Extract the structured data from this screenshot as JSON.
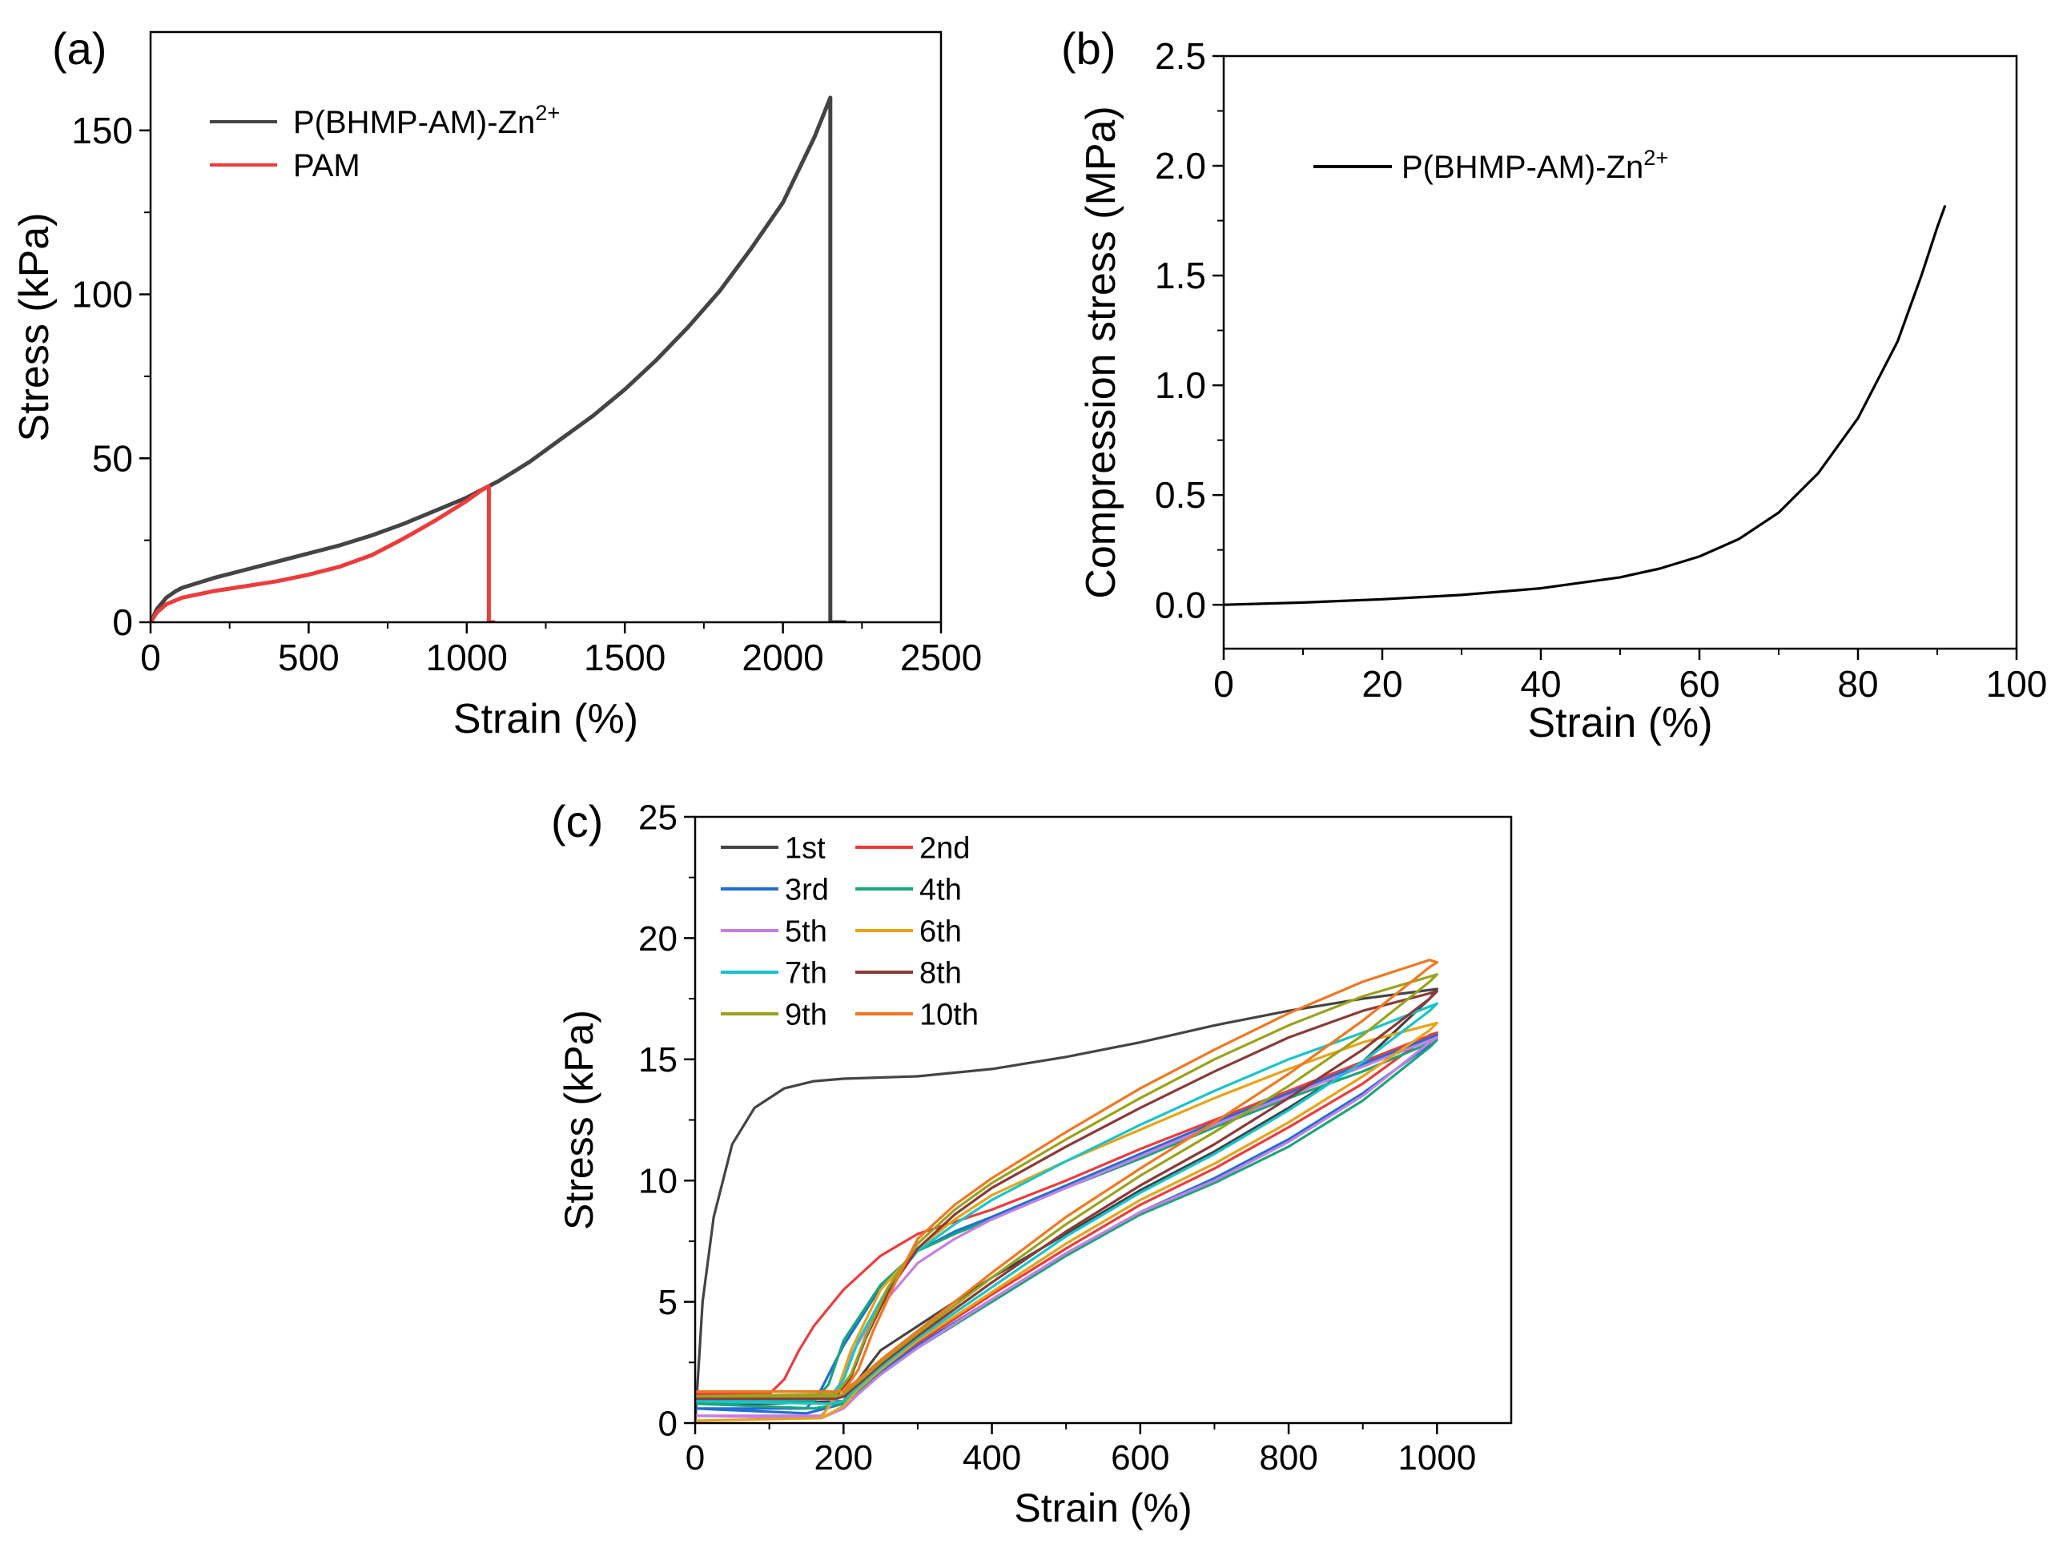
{
  "chart_data": [
    {
      "panel_label": "(a)",
      "type": "line",
      "xlabel": "Strain (%)",
      "ylabel": "Stress (kPa)",
      "xlim": [
        0,
        2500
      ],
      "ylim": [
        0,
        180
      ],
      "xticks": [
        0,
        500,
        1000,
        1500,
        2000,
        2500
      ],
      "yticks": [
        0,
        50,
        100,
        150
      ],
      "legend": "top-left",
      "series": [
        {
          "name": "P(BHMP-AM)-Zn2+",
          "name_base": "P(BHMP-AM)-Zn",
          "name_sup": "2+",
          "color": "#444444",
          "x": [
            0,
            20,
            50,
            80,
            100,
            200,
            300,
            400,
            500,
            600,
            700,
            800,
            900,
            1000,
            1100,
            1200,
            1300,
            1400,
            1500,
            1600,
            1700,
            1800,
            1900,
            2000,
            2100,
            2150,
            2150,
            2200
          ],
          "y": [
            0,
            4,
            7.5,
            9.5,
            10.5,
            13.5,
            16,
            18.5,
            21,
            23.5,
            26.5,
            30,
            34,
            38,
            43,
            49,
            56,
            63,
            71,
            80,
            90,
            101,
            114,
            128,
            148,
            160,
            0,
            0
          ]
        },
        {
          "name": "PAM",
          "color": "#ee3b3b",
          "x": [
            0,
            20,
            50,
            100,
            200,
            300,
            400,
            500,
            600,
            700,
            800,
            900,
            1000,
            1050,
            1070,
            1070,
            1090
          ],
          "y": [
            0,
            3,
            5.5,
            7.5,
            9.5,
            11,
            12.5,
            14.5,
            17,
            20.5,
            25.5,
            31,
            37,
            40.5,
            41.5,
            0,
            0
          ]
        }
      ]
    },
    {
      "panel_label": "(b)",
      "type": "line",
      "xlabel": "Strain (%)",
      "ylabel": "Compression stress (MPa)",
      "xlim": [
        0,
        100
      ],
      "ylim": [
        -0.2,
        2.5
      ],
      "xticks": [
        0,
        20,
        40,
        60,
        80,
        100
      ],
      "yticks": [
        0.0,
        0.5,
        1.0,
        1.5,
        2.0,
        2.5
      ],
      "ytick_labels": [
        "0.0",
        "0.5",
        "1.0",
        "1.5",
        "2.0",
        "2.5"
      ],
      "legend": "top-left",
      "series": [
        {
          "name": "P(BHMP-AM)-Zn2+",
          "name_base": "P(BHMP-AM)-Zn",
          "name_sup": "2+",
          "color": "#000000",
          "x": [
            0,
            10,
            20,
            30,
            40,
            50,
            55,
            60,
            65,
            70,
            75,
            80,
            85,
            88,
            90,
            91
          ],
          "y": [
            0,
            0.01,
            0.025,
            0.045,
            0.075,
            0.125,
            0.165,
            0.22,
            0.3,
            0.42,
            0.6,
            0.85,
            1.2,
            1.5,
            1.72,
            1.82
          ]
        }
      ]
    },
    {
      "panel_label": "(c)",
      "type": "line",
      "xlabel": "Strain (%)",
      "ylabel": "Stress (kPa)",
      "xlim": [
        0,
        1100
      ],
      "ylim": [
        0,
        25
      ],
      "xticks": [
        0,
        200,
        400,
        600,
        800,
        1000
      ],
      "yticks": [
        0,
        5,
        10,
        15,
        20,
        25
      ],
      "legend": "top-left",
      "series": [
        {
          "name": "1st",
          "color": "#444444",
          "x": [
            0,
            10,
            25,
            50,
            80,
            120,
            160,
            200,
            300,
            400,
            500,
            600,
            700,
            800,
            900,
            1000,
            990,
            900,
            800,
            700,
            600,
            500,
            400,
            300,
            250,
            220,
            200,
            100,
            0
          ],
          "y": [
            0,
            5,
            8.5,
            11.5,
            13,
            13.8,
            14.1,
            14.2,
            14.3,
            14.6,
            15.1,
            15.7,
            16.4,
            17,
            17.5,
            17.9,
            17.5,
            14.9,
            13,
            11.2,
            9.6,
            7.8,
            6,
            4,
            3,
            1.8,
            0.9,
            0.8,
            0.8
          ]
        },
        {
          "name": "2nd",
          "color": "#ee3b3b",
          "x": [
            0,
            100,
            120,
            140,
            160,
            200,
            250,
            300,
            350,
            400,
            500,
            600,
            700,
            800,
            900,
            1000,
            990,
            900,
            800,
            700,
            600,
            500,
            400,
            300,
            250,
            220,
            200,
            100,
            0
          ],
          "y": [
            1.2,
            1.2,
            1.8,
            3,
            4,
            5.5,
            6.9,
            7.8,
            8.3,
            8.8,
            10,
            11.3,
            12.5,
            13.7,
            14.9,
            16.1,
            16,
            14,
            12.2,
            10.5,
            9,
            7.2,
            5.3,
            3.3,
            2.2,
            1.6,
            1.1,
            1.1,
            1.2
          ]
        },
        {
          "name": "3rd",
          "color": "#1f6fd6",
          "x": [
            0,
            150,
            170,
            200,
            250,
            300,
            350,
            400,
            500,
            600,
            700,
            800,
            900,
            1000,
            990,
            900,
            800,
            700,
            600,
            500,
            400,
            300,
            250,
            220,
            200,
            150,
            0
          ],
          "y": [
            0.6,
            0.6,
            1.4,
            3.2,
            5.6,
            7.1,
            7.9,
            8.5,
            9.8,
            11.1,
            12.4,
            13.6,
            14.8,
            16,
            15.6,
            13.6,
            11.7,
            10.1,
            8.7,
            7,
            5.1,
            3.2,
            2.1,
            1.4,
            0.8,
            0.4,
            0.6
          ]
        },
        {
          "name": "4th",
          "color": "#1aa57a",
          "x": [
            0,
            160,
            180,
            200,
            250,
            300,
            350,
            400,
            500,
            600,
            700,
            800,
            900,
            1000,
            990,
            900,
            800,
            700,
            600,
            500,
            400,
            300,
            250,
            220,
            200,
            160,
            0
          ],
          "y": [
            0.8,
            0.9,
            1.6,
            3.4,
            5.7,
            7.1,
            7.8,
            8.4,
            9.7,
            10.9,
            12.2,
            13.4,
            14.5,
            15.8,
            15.5,
            13.3,
            11.4,
            9.9,
            8.6,
            6.9,
            5,
            3.1,
            2,
            1.3,
            0.8,
            0.6,
            0.8
          ]
        },
        {
          "name": "5th",
          "color": "#c77fe0",
          "x": [
            0,
            170,
            190,
            210,
            250,
            300,
            350,
            400,
            500,
            600,
            700,
            800,
            900,
            1000,
            990,
            900,
            800,
            700,
            600,
            500,
            400,
            300,
            250,
            220,
            200,
            170,
            0
          ],
          "y": [
            0.3,
            0.3,
            1,
            2.8,
            4.8,
            6.6,
            7.6,
            8.4,
            9.7,
            11,
            12.3,
            13.5,
            14.7,
            15.9,
            15.7,
            13.5,
            11.6,
            10,
            8.7,
            7,
            5.1,
            3.1,
            2,
            1.2,
            0.6,
            0.2,
            0.3
          ]
        },
        {
          "name": "6th",
          "color": "#e8a317",
          "x": [
            0,
            170,
            190,
            210,
            250,
            300,
            350,
            400,
            500,
            600,
            700,
            800,
            900,
            1000,
            990,
            900,
            800,
            700,
            600,
            500,
            400,
            300,
            250,
            220,
            200,
            170,
            0
          ],
          "y": [
            0.1,
            0.2,
            1.2,
            3,
            5.5,
            7.2,
            8.4,
            9.4,
            10.8,
            12.1,
            13.4,
            14.6,
            15.7,
            16.5,
            16.2,
            14.3,
            12.4,
            10.7,
            9.2,
            7.4,
            5.4,
            3.4,
            2.2,
            1.4,
            0.7,
            0.2,
            0.1
          ]
        },
        {
          "name": "7th",
          "color": "#17c4cc",
          "x": [
            0,
            180,
            200,
            220,
            260,
            300,
            350,
            400,
            500,
            600,
            700,
            800,
            900,
            1000,
            990,
            900,
            800,
            700,
            600,
            500,
            400,
            300,
            250,
            220,
            200,
            180,
            0
          ],
          "y": [
            0.9,
            1,
            1.8,
            3.4,
            5.6,
            7.1,
            8.2,
            9.2,
            10.8,
            12.3,
            13.7,
            15,
            16.1,
            17.3,
            17,
            14.9,
            12.9,
            11.1,
            9.5,
            7.7,
            5.6,
            3.5,
            2.3,
            1.5,
            0.9,
            0.8,
            0.9
          ]
        },
        {
          "name": "8th",
          "color": "#8b3a3a",
          "x": [
            0,
            190,
            210,
            230,
            260,
            300,
            350,
            400,
            500,
            600,
            700,
            800,
            900,
            1000,
            990,
            900,
            800,
            700,
            600,
            500,
            400,
            300,
            250,
            220,
            200,
            190,
            0
          ],
          "y": [
            1,
            1.1,
            1.9,
            3.5,
            5.4,
            7.2,
            8.6,
            9.7,
            11.4,
            13,
            14.5,
            15.9,
            17,
            17.8,
            17.5,
            15.4,
            13.4,
            11.5,
            9.8,
            7.9,
            5.8,
            3.6,
            2.4,
            1.6,
            1.1,
            1,
            1
          ]
        },
        {
          "name": "9th",
          "color": "#9aa31c",
          "x": [
            0,
            190,
            210,
            230,
            260,
            300,
            350,
            400,
            500,
            600,
            700,
            800,
            900,
            1000,
            990,
            900,
            800,
            700,
            600,
            500,
            400,
            300,
            250,
            220,
            200,
            190,
            0
          ],
          "y": [
            1.1,
            1.2,
            2,
            3.6,
            5.6,
            7.4,
            8.8,
            9.9,
            11.7,
            13.4,
            15,
            16.4,
            17.6,
            18.5,
            18.2,
            16,
            13.9,
            12,
            10.2,
            8.2,
            6,
            3.7,
            2.5,
            1.7,
            1.2,
            1.1,
            1.1
          ]
        },
        {
          "name": "10th",
          "color": "#f07820",
          "x": [
            0,
            200,
            220,
            240,
            270,
            300,
            350,
            400,
            500,
            600,
            700,
            800,
            900,
            990,
            1000,
            990,
            900,
            800,
            700,
            600,
            500,
            400,
            300,
            250,
            220,
            200,
            0
          ],
          "y": [
            1.3,
            1.3,
            2.2,
            3.8,
            5.8,
            7.6,
            9,
            10.1,
            12,
            13.8,
            15.4,
            16.9,
            18.2,
            19.1,
            19,
            18.8,
            16.6,
            14.4,
            12.4,
            10.5,
            8.5,
            6.2,
            3.8,
            2.6,
            1.8,
            1.3,
            1.3
          ]
        }
      ]
    }
  ]
}
